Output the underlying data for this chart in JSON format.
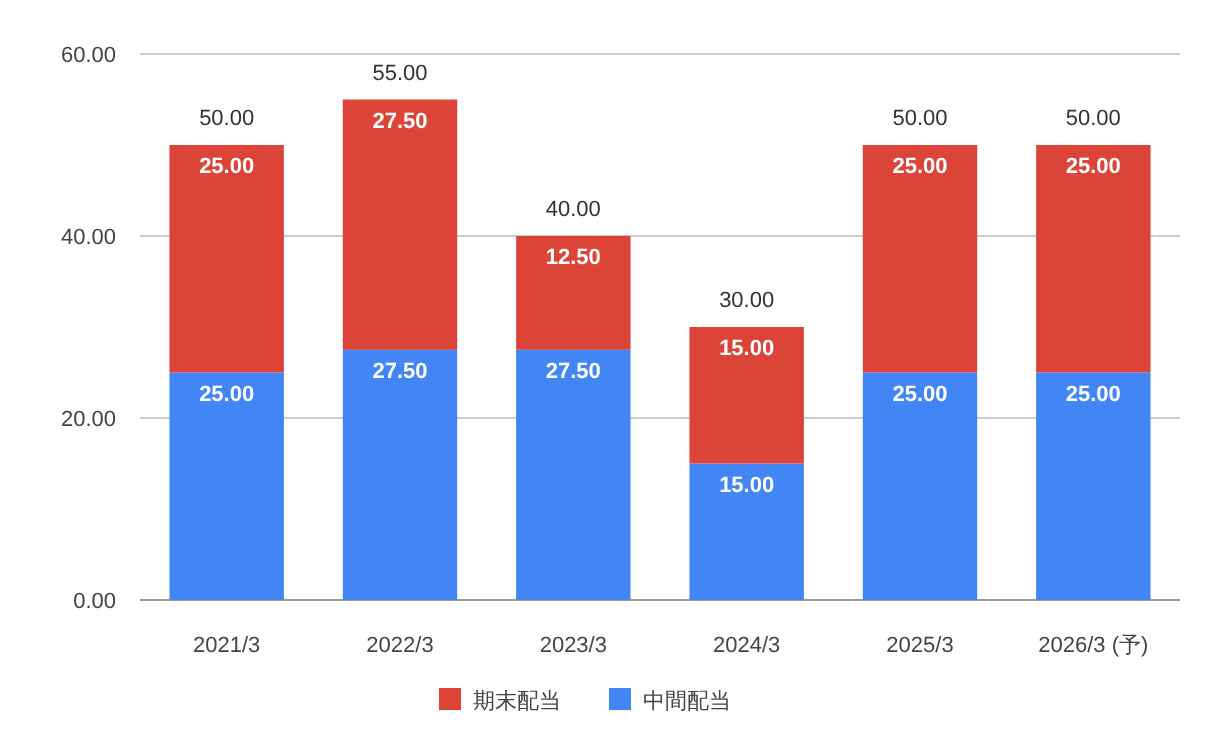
{
  "chart_data": {
    "type": "bar",
    "stacked": true,
    "categories": [
      "2021/3",
      "2022/3",
      "2023/3",
      "2024/3",
      "2025/3",
      "2026/3 (予)"
    ],
    "series": [
      {
        "name": "中間配当",
        "color": "#4285f4",
        "values": [
          25,
          27.5,
          27.5,
          15,
          25,
          25
        ],
        "value_labels": [
          "25.00",
          "27.50",
          "27.50",
          "15.00",
          "25.00",
          "25.00"
        ]
      },
      {
        "name": "期末配当",
        "color": "#db4437",
        "values": [
          25,
          27.5,
          12.5,
          15,
          25,
          25
        ],
        "value_labels": [
          "25.00",
          "27.50",
          "12.50",
          "15.00",
          "25.00",
          "25.00"
        ]
      }
    ],
    "totals": [
      "50.00",
      "55.00",
      "40.00",
      "30.00",
      "50.00",
      "50.00"
    ],
    "ylim": [
      0,
      60
    ],
    "yticks": [
      {
        "value": 0,
        "label": "0.00"
      },
      {
        "value": 20,
        "label": "20.00"
      },
      {
        "value": 40,
        "label": "40.00"
      },
      {
        "value": 60,
        "label": "60.00"
      }
    ],
    "grid": "y",
    "legend": "bottom"
  }
}
